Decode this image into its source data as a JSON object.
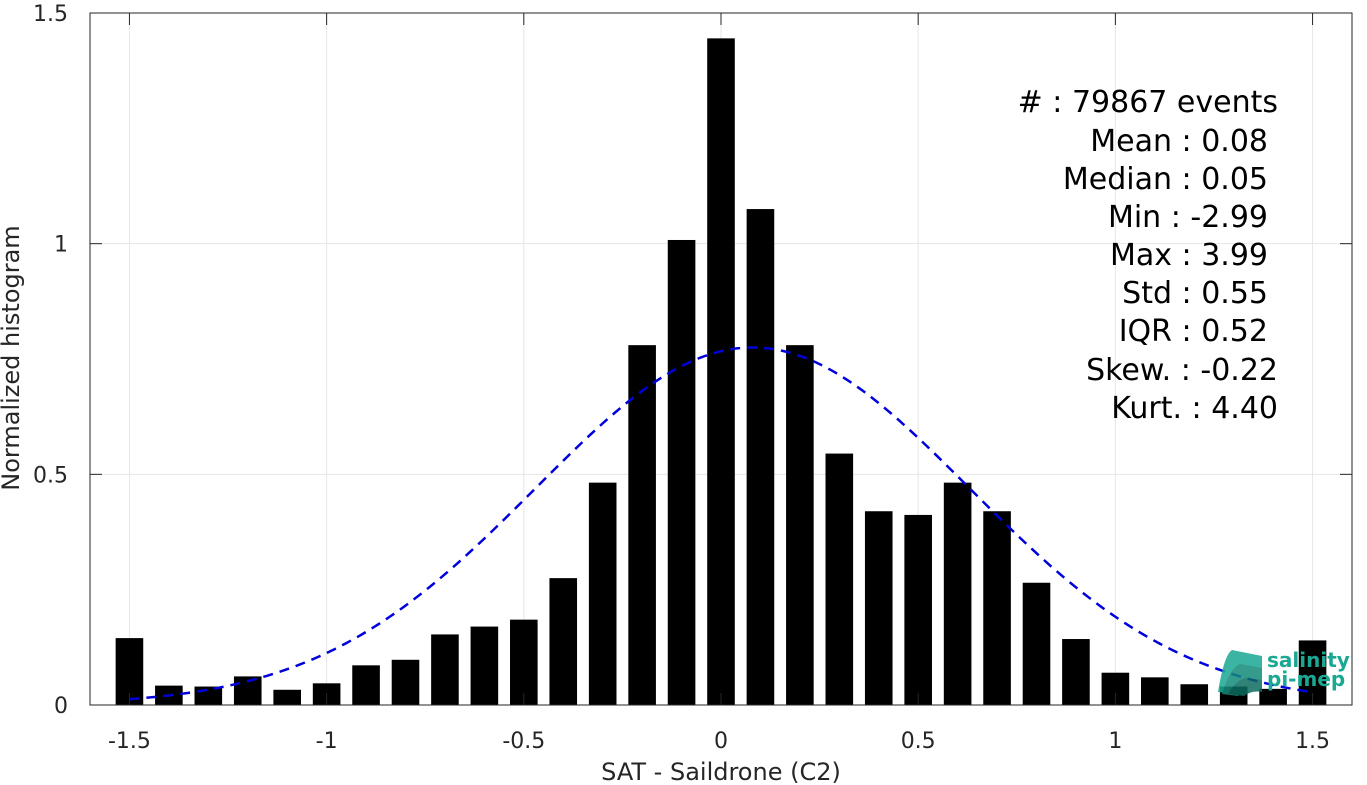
{
  "chart_data": {
    "type": "bar",
    "xlabel": "SAT - Saildrone (C2)",
    "ylabel": "Normalized histogram",
    "xlim": [
      -1.6,
      1.6
    ],
    "ylim": [
      0,
      1.5
    ],
    "x_ticks": [
      -1.5,
      -1,
      -0.5,
      0,
      0.5,
      1,
      1.5
    ],
    "x_tick_labels": [
      "-1.5",
      "-1",
      "-0.5",
      "0",
      "0.5",
      "1",
      "1.5"
    ],
    "y_ticks": [
      0,
      0.5,
      1,
      1.5
    ],
    "y_tick_labels": [
      "0",
      "0.5",
      "1",
      "1.5"
    ],
    "grid": true,
    "bar_width": 0.07,
    "x": [
      -1.5,
      -1.4,
      -1.3,
      -1.2,
      -1.1,
      -1.0,
      -0.9,
      -0.8,
      -0.7,
      -0.6,
      -0.5,
      -0.4,
      -0.3,
      -0.2,
      -0.1,
      0.0,
      0.1,
      0.2,
      0.3,
      0.4,
      0.5,
      0.6,
      0.7,
      0.8,
      0.9,
      1.0,
      1.1,
      1.2,
      1.3,
      1.4,
      1.5
    ],
    "values": [
      0.145,
      0.042,
      0.04,
      0.062,
      0.033,
      0.047,
      0.086,
      0.098,
      0.153,
      0.17,
      0.185,
      0.275,
      0.482,
      0.78,
      1.008,
      1.445,
      1.075,
      0.78,
      0.545,
      0.42,
      0.412,
      0.482,
      0.42,
      0.265,
      0.143,
      0.07,
      0.06,
      0.045,
      0.04,
      0.035,
      0.14
    ],
    "bar_color": "#000000",
    "fit_curve": {
      "style": "dashed",
      "color": "#0000dd",
      "mean": 0.08,
      "std": 0.55,
      "peak": 0.775
    },
    "stats": [
      "#  : 79867 events",
      "Mean : 0.08",
      "Median : 0.05",
      "Min : -2.99",
      "Max : 3.99",
      "Std : 0.55",
      "IQR : 0.52",
      "Skew. : -0.22",
      "Kurt. : 4.40"
    ]
  },
  "logo": {
    "line1": "salinity",
    "line2": "pi-mep",
    "color": "#1ba893"
  }
}
